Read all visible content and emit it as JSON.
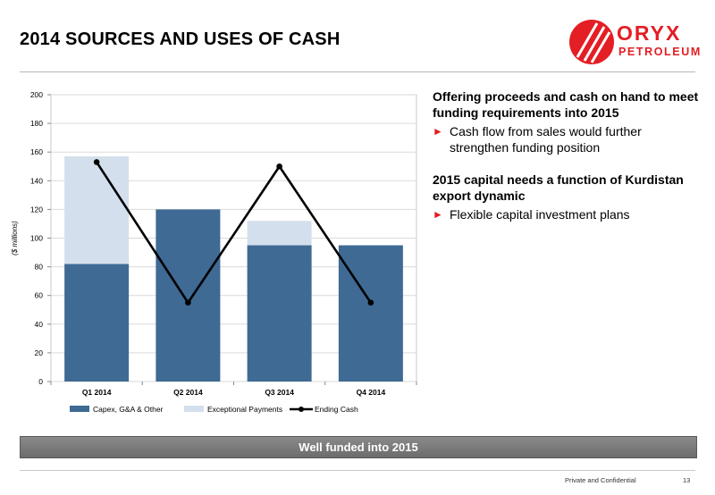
{
  "slide": {
    "title": "2014 SOURCES AND USES OF CASH",
    "page_number": "13",
    "footer_label": "Private and Confidential",
    "banner": "Well funded into 2015"
  },
  "logo": {
    "line1": "ORYX",
    "line2": "PETROLEUM",
    "color": "#e31e24"
  },
  "bullets": [
    {
      "heading": "Offering proceeds and cash on hand to meet funding requirements into 2015",
      "points": [
        "Cash flow from sales would further strengthen funding position"
      ]
    },
    {
      "heading": "2015 capital needs a function of Kurdistan export dynamic",
      "points": [
        "Flexible capital investment plans"
      ]
    }
  ],
  "chart_data": {
    "type": "bar",
    "stacked": true,
    "categories": [
      "Q1 2014",
      "Q2 2014",
      "Q3 2014",
      "Q4 2014"
    ],
    "series": [
      {
        "name": "Capex, G&A & Other",
        "type": "bar",
        "color": "#3e6a94",
        "values": [
          82,
          120,
          95,
          95
        ]
      },
      {
        "name": "Exceptional Payments",
        "type": "bar",
        "color": "#d3dfec",
        "values": [
          75,
          0,
          17,
          0
        ]
      },
      {
        "name": "Ending Cash",
        "type": "line",
        "color": "#000000",
        "values": [
          153,
          55,
          150,
          55
        ]
      }
    ],
    "ylabel": "($ millions)",
    "ylim": [
      0,
      200
    ],
    "yticks": [
      0,
      20,
      40,
      60,
      80,
      100,
      120,
      140,
      160,
      180,
      200
    ],
    "grid": true,
    "legend": "bottom"
  }
}
